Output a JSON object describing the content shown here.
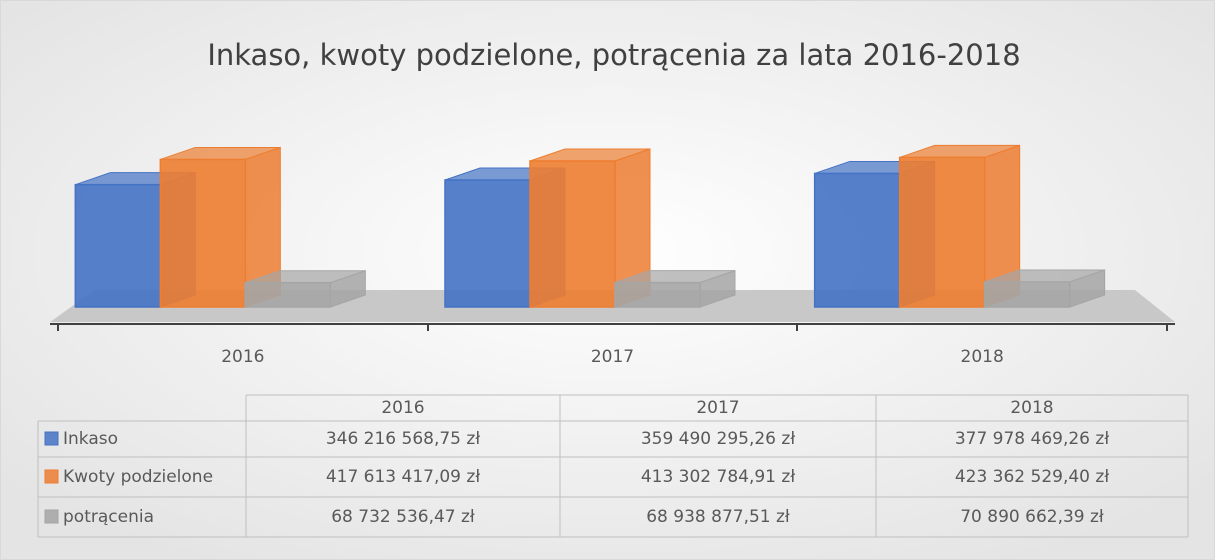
{
  "chart_data": {
    "type": "bar3d",
    "title": "Inkaso, kwoty podzielone, potrącenia za lata 2016-2018",
    "categories": [
      "2016",
      "2017",
      "2018"
    ],
    "series": [
      {
        "name": "Inkaso",
        "color": "#4472c4",
        "values": [
          346216568.75,
          359490295.26,
          377978469.26
        ],
        "value_labels": [
          "346 216 568,75 zł",
          "359 490 295,26 zł",
          "377 978 469,26 zł"
        ]
      },
      {
        "name": "Kwoty podzielone",
        "color": "#ed7d31",
        "values": [
          417613417.09,
          413302784.91,
          423362529.4
        ],
        "value_labels": [
          "417 613 417,09 zł",
          "413 302 784,91 zł",
          "423 362 529,40 zł"
        ]
      },
      {
        "name": "potrącenia",
        "color": "#a5a5a5",
        "values": [
          68732536.47,
          68938877.51,
          70890662.39
        ],
        "value_labels": [
          "68 732 536,47 zł",
          "68 938 877,51 zł",
          "70 890 662,39 zł"
        ]
      }
    ],
    "ylim": [
      0,
      450000000
    ]
  }
}
